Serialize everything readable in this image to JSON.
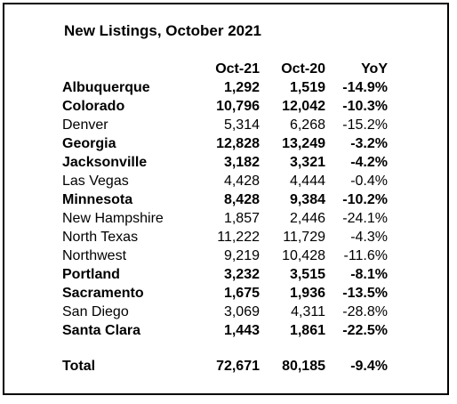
{
  "title": "New Listings, October 2021",
  "table": {
    "headers": {
      "name": "",
      "oct21": "Oct-21",
      "oct20": "Oct-20",
      "yoy": "YoY"
    },
    "rows": [
      {
        "name": "Albuquerque",
        "oct21": "1,292",
        "oct20": "1,519",
        "yoy": "-14.9%",
        "bold": true
      },
      {
        "name": "Colorado",
        "oct21": "10,796",
        "oct20": "12,042",
        "yoy": "-10.3%",
        "bold": true
      },
      {
        "name": "Denver",
        "oct21": "5,314",
        "oct20": "6,268",
        "yoy": "-15.2%",
        "bold": false
      },
      {
        "name": "Georgia",
        "oct21": "12,828",
        "oct20": "13,249",
        "yoy": "-3.2%",
        "bold": true
      },
      {
        "name": "Jacksonville",
        "oct21": "3,182",
        "oct20": "3,321",
        "yoy": "-4.2%",
        "bold": true
      },
      {
        "name": "Las Vegas",
        "oct21": "4,428",
        "oct20": "4,444",
        "yoy": "-0.4%",
        "bold": false
      },
      {
        "name": "Minnesota",
        "oct21": "8,428",
        "oct20": "9,384",
        "yoy": "-10.2%",
        "bold": true
      },
      {
        "name": "New Hampshire",
        "oct21": "1,857",
        "oct20": "2,446",
        "yoy": "-24.1%",
        "bold": false
      },
      {
        "name": "North Texas",
        "oct21": "11,222",
        "oct20": "11,729",
        "yoy": "-4.3%",
        "bold": false
      },
      {
        "name": "Northwest",
        "oct21": "9,219",
        "oct20": "10,428",
        "yoy": "-11.6%",
        "bold": false
      },
      {
        "name": "Portland",
        "oct21": "3,232",
        "oct20": "3,515",
        "yoy": "-8.1%",
        "bold": true
      },
      {
        "name": "Sacramento",
        "oct21": "1,675",
        "oct20": "1,936",
        "yoy": "-13.5%",
        "bold": true
      },
      {
        "name": "San Diego",
        "oct21": "3,069",
        "oct20": "4,311",
        "yoy": "-28.8%",
        "bold": false
      },
      {
        "name": "Santa Clara",
        "oct21": "1,443",
        "oct20": "1,861",
        "yoy": "-22.5%",
        "bold": true
      }
    ],
    "total": {
      "name": "Total",
      "oct21": "72,671",
      "oct20": "80,185",
      "yoy": "-9.4%"
    }
  }
}
